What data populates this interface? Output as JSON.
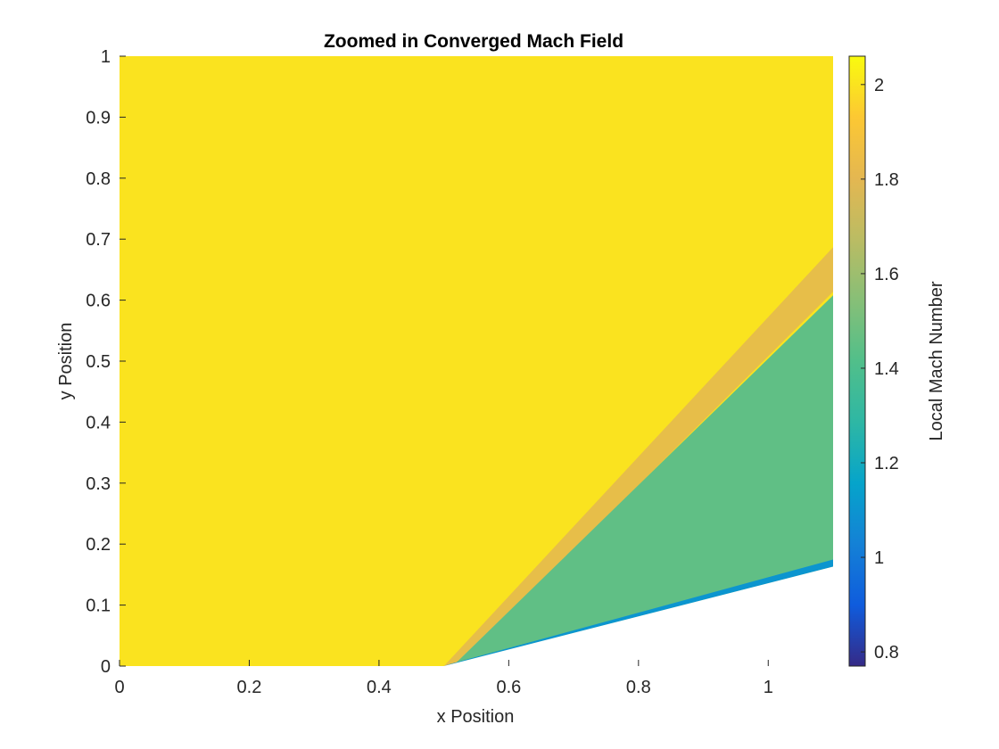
{
  "chart_data": {
    "type": "heatmap",
    "title": "Zoomed in Converged Mach Field",
    "xlabel": "x Position",
    "ylabel": "y Position",
    "xlim": [
      0,
      1.1
    ],
    "ylim": [
      0,
      1
    ],
    "x_ticks": [
      "0",
      "0.2",
      "0.4",
      "0.6",
      "0.8",
      "1"
    ],
    "x_tick_values": [
      0,
      0.2,
      0.4,
      0.6,
      0.8,
      1.0
    ],
    "y_ticks": [
      "0",
      "0.1",
      "0.2",
      "0.3",
      "0.4",
      "0.5",
      "0.6",
      "0.7",
      "0.8",
      "0.9",
      "1"
    ],
    "y_tick_values": [
      0,
      0.1,
      0.2,
      0.3,
      0.4,
      0.5,
      0.6,
      0.7,
      0.8,
      0.9,
      1.0
    ],
    "grid": false,
    "colormap": "parula",
    "colorbar": {
      "label": "Local Mach Number",
      "range": [
        0.77,
        2.06
      ],
      "ticks": [
        "0.8",
        "1",
        "1.2",
        "1.4",
        "1.6",
        "1.8",
        "2"
      ],
      "tick_values": [
        0.8,
        1.0,
        1.2,
        1.4,
        1.6,
        1.8,
        2.0
      ]
    },
    "field": {
      "freestream_mach": 2.0,
      "post_shock_mach": 1.45,
      "wedge_start": [
        0.5,
        0.0
      ],
      "wedge_end": [
        1.1,
        0.163
      ],
      "shock_end": [
        1.1,
        0.64
      ],
      "wall_mach": 1.1
    }
  }
}
